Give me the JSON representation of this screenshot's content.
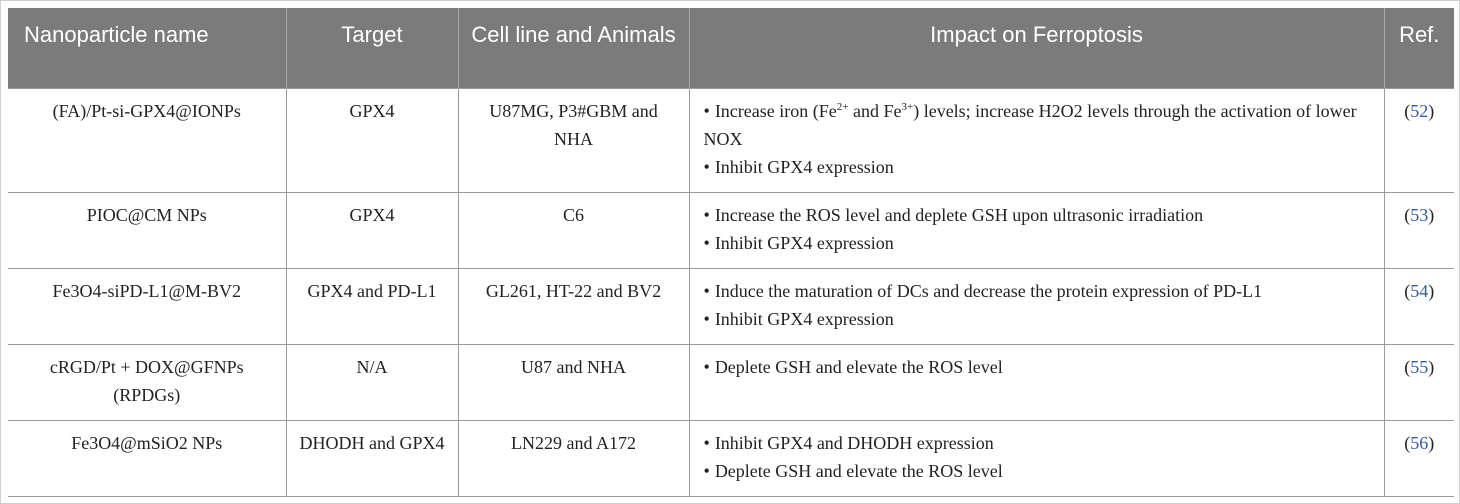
{
  "table": {
    "headers": [
      "Nanoparticle name",
      "Target",
      "Cell line and Animals",
      "Impact on Ferroptosis",
      "Ref."
    ],
    "rows": [
      {
        "name": "(FA)/Pt-si-GPX4@IONPs",
        "target": "GPX4",
        "cells": "U87MG, P3#GBM and NHA",
        "impact": {
          "b1_a": "Increase iron (Fe",
          "b1_sup1": "2+",
          "b1_b": " and Fe",
          "b1_sup2": "3+",
          "b1_c": ") levels; increase H2O2 levels through the activation of lower NOX",
          "b2": "Inhibit GPX4 expression"
        },
        "ref": "52"
      },
      {
        "name": "PIOC@CM NPs",
        "target": "GPX4",
        "cells": "C6",
        "impact": [
          "Increase the ROS level and deplete GSH upon ultrasonic irradiation",
          "Inhibit GPX4 expression"
        ],
        "ref": "53"
      },
      {
        "name": "Fe3O4-siPD-L1@M-BV2",
        "target": "GPX4 and PD-L1",
        "cells": "GL261, HT-22 and BV2",
        "impact": [
          "Induce the maturation of DCs and decrease the protein expression of PD-L1",
          "Inhibit GPX4 expression"
        ],
        "ref": "54"
      },
      {
        "name": "cRGD/Pt + DOX@GFNPs (RPDGs)",
        "target": "N/A",
        "cells": "U87 and NHA",
        "impact": [
          "Deplete GSH and elevate the ROS level"
        ],
        "ref": "55"
      },
      {
        "name": "Fe3O4@mSiO2 NPs",
        "target": "DHODH and GPX4",
        "cells": "LN229 and A172",
        "impact": [
          "Inhibit GPX4 and DHODH expression",
          "Deplete GSH and elevate the ROS level"
        ],
        "ref": "56"
      }
    ]
  },
  "glyphs": {
    "bullet": "•",
    "ref_open": "(",
    "ref_close": ")"
  }
}
